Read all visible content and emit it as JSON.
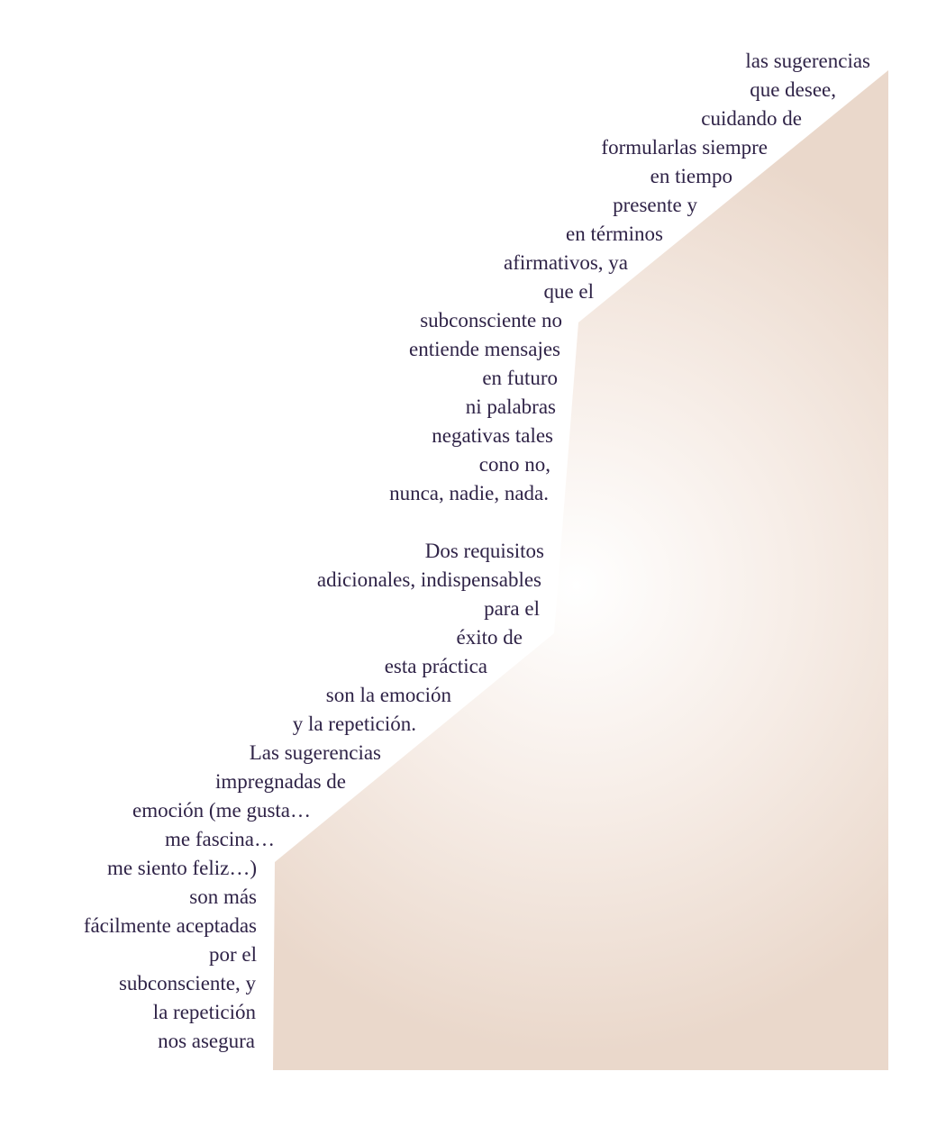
{
  "colors": {
    "text": "#2f2347",
    "fill_light": "#ffffff",
    "fill_mid": "#f7eee8",
    "fill_dark": "#ead8cb"
  },
  "lines": [
    "las sugerencias",
    "que desee,",
    "cuidando de",
    "formularlas siempre",
    "en tiempo",
    "presente y",
    "en términos",
    "afirmativos, ya",
    "que el",
    "subconsciente no",
    "entiende mensajes",
    "en futuro",
    "ni palabras",
    "negativas tales",
    "cono no,",
    "nunca, nadie, nada.",
    "Dos requisitos",
    "adicionales, indispensables",
    "para el",
    "éxito de",
    "esta práctica",
    "son la emoción",
    "y la repetición.",
    "Las sugerencias",
    "impregnadas de",
    "emoción (me gusta…",
    "me fascina…",
    "me siento feliz…)",
    "son más",
    "fácilmente aceptadas",
    "por el",
    "subconsciente, y",
    "la repetición",
    "nos asegura"
  ]
}
